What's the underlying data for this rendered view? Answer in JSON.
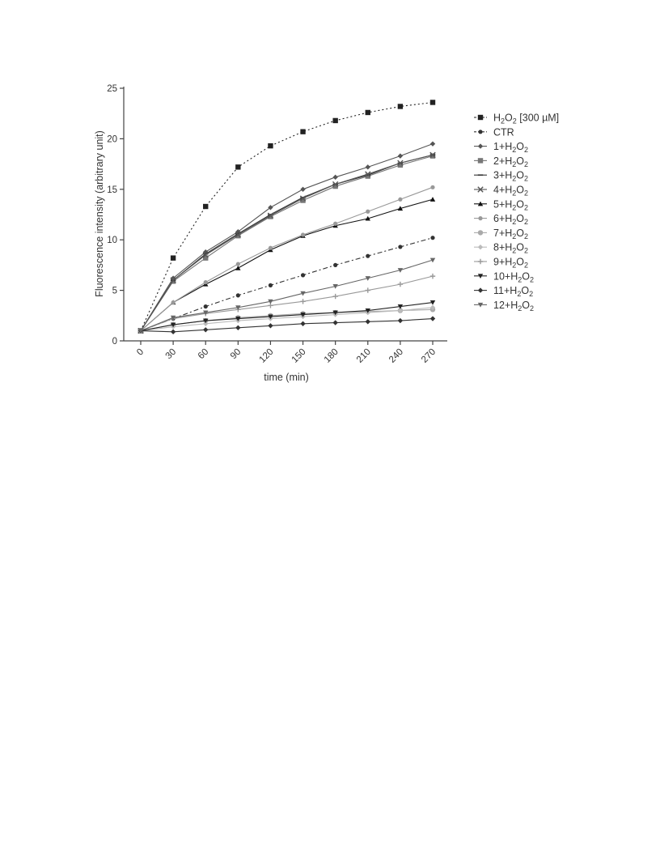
{
  "chart_data": {
    "type": "line",
    "xlabel": "time (min)",
    "ylabel": "Fluorescence intensity (arbitrary unit)",
    "x": [
      0,
      30,
      60,
      90,
      120,
      150,
      180,
      210,
      240,
      270
    ],
    "xticks": [
      "0",
      "30",
      "60",
      "90",
      "120",
      "150",
      "180",
      "210",
      "240",
      "270"
    ],
    "yticks": [
      "0",
      "5",
      "10",
      "15",
      "20",
      "25"
    ],
    "ylim": [
      0,
      25
    ],
    "grid": false,
    "legend_position": "right",
    "series": [
      {
        "name": "H2O2 [300 µM]",
        "label_parts": [
          [
            "H",
            "n"
          ],
          [
            "2",
            "s"
          ],
          [
            "O",
            "n"
          ],
          [
            "2",
            "s"
          ],
          [
            " [300 µM]",
            "n"
          ]
        ],
        "marker": "square",
        "dash": "2,3",
        "color": "#222222",
        "values": [
          1.0,
          8.2,
          13.3,
          17.2,
          19.3,
          20.7,
          21.8,
          22.6,
          23.2,
          23.6
        ]
      },
      {
        "name": "CTR",
        "label_parts": [
          [
            "CTR",
            "n"
          ]
        ],
        "marker": "circle",
        "dash": "6,3,2,3",
        "color": "#333333",
        "values": [
          1.0,
          2.2,
          3.4,
          4.5,
          5.5,
          6.5,
          7.5,
          8.4,
          9.3,
          10.2
        ]
      },
      {
        "name": "1+H2O2",
        "label_parts": [
          [
            "1+H",
            "n"
          ],
          [
            "2",
            "s"
          ],
          [
            "O",
            "n"
          ],
          [
            "2",
            "s"
          ]
        ],
        "marker": "diamond",
        "dash": "",
        "color": "#555555",
        "values": [
          1.0,
          6.2,
          8.8,
          10.8,
          13.2,
          15.0,
          16.2,
          17.2,
          18.3,
          19.5
        ]
      },
      {
        "name": "2+H2O2",
        "label_parts": [
          [
            "2+H",
            "n"
          ],
          [
            "2",
            "s"
          ],
          [
            "O",
            "n"
          ],
          [
            "2",
            "s"
          ]
        ],
        "marker": "square",
        "dash": "",
        "color": "#777777",
        "values": [
          1.0,
          5.9,
          8.2,
          10.4,
          12.3,
          13.9,
          15.3,
          16.3,
          17.4,
          18.3
        ]
      },
      {
        "name": "3+H2O2",
        "label_parts": [
          [
            "3+H",
            "n"
          ],
          [
            "2",
            "s"
          ],
          [
            "O",
            "n"
          ],
          [
            "2",
            "s"
          ]
        ],
        "marker": "dash",
        "dash": "",
        "color": "#333333",
        "values": [
          1.0,
          6.0,
          8.6,
          10.6,
          12.5,
          14.2,
          15.5,
          16.4,
          17.6,
          18.4
        ]
      },
      {
        "name": "4+H2O2",
        "label_parts": [
          [
            "4+H",
            "n"
          ],
          [
            "2",
            "s"
          ],
          [
            "O",
            "n"
          ],
          [
            "2",
            "s"
          ]
        ],
        "marker": "x",
        "dash": "",
        "color": "#555555",
        "values": [
          1.0,
          6.0,
          8.5,
          10.5,
          12.4,
          14.1,
          15.5,
          16.5,
          17.6,
          18.4
        ]
      },
      {
        "name": "5+H2O2",
        "label_parts": [
          [
            "5+H",
            "n"
          ],
          [
            "2",
            "s"
          ],
          [
            "O",
            "n"
          ],
          [
            "2",
            "s"
          ]
        ],
        "marker": "triangle",
        "dash": "",
        "color": "#111111",
        "values": [
          1.0,
          3.8,
          5.6,
          7.2,
          9.0,
          10.4,
          11.4,
          12.1,
          13.1,
          14.0
        ]
      },
      {
        "name": "6+H2O2",
        "label_parts": [
          [
            "6+H",
            "n"
          ],
          [
            "2",
            "s"
          ],
          [
            "O",
            "n"
          ],
          [
            "2",
            "s"
          ]
        ],
        "marker": "circle",
        "dash": "",
        "color": "#999999",
        "values": [
          1.0,
          3.8,
          5.8,
          7.6,
          9.2,
          10.5,
          11.6,
          12.8,
          14.0,
          15.2
        ]
      },
      {
        "name": "7+H2O2",
        "label_parts": [
          [
            "7+H",
            "n"
          ],
          [
            "2",
            "s"
          ],
          [
            "O",
            "n"
          ],
          [
            "2",
            "s"
          ]
        ],
        "marker": "circle-lg",
        "dash": "",
        "color": "#aaaaaa",
        "values": [
          1.0,
          1.6,
          2.0,
          2.3,
          2.5,
          2.7,
          2.8,
          2.9,
          3.0,
          3.1
        ]
      },
      {
        "name": "8+H2O2",
        "label_parts": [
          [
            "8+H",
            "n"
          ],
          [
            "2",
            "s"
          ],
          [
            "O",
            "n"
          ],
          [
            "2",
            "s"
          ]
        ],
        "marker": "diamond",
        "dash": "",
        "color": "#bbbbbb",
        "values": [
          1.0,
          1.4,
          1.7,
          2.0,
          2.2,
          2.4,
          2.6,
          2.8,
          3.0,
          3.3
        ]
      },
      {
        "name": "9+H2O2",
        "label_parts": [
          [
            "9+H",
            "n"
          ],
          [
            "2",
            "s"
          ],
          [
            "O",
            "n"
          ],
          [
            "2",
            "s"
          ]
        ],
        "marker": "plus",
        "dash": "",
        "color": "#999999",
        "values": [
          1.0,
          2.2,
          2.7,
          3.1,
          3.5,
          3.9,
          4.4,
          5.0,
          5.6,
          6.4
        ]
      },
      {
        "name": "10+H2O2",
        "label_parts": [
          [
            "10+H",
            "n"
          ],
          [
            "2",
            "s"
          ],
          [
            "O",
            "n"
          ],
          [
            "2",
            "s"
          ]
        ],
        "marker": "triangle-down",
        "dash": "",
        "color": "#222222",
        "values": [
          1.0,
          1.6,
          2.0,
          2.2,
          2.4,
          2.6,
          2.8,
          3.0,
          3.4,
          3.8
        ]
      },
      {
        "name": "11+H2O2",
        "label_parts": [
          [
            "11+H",
            "n"
          ],
          [
            "2",
            "s"
          ],
          [
            "O",
            "n"
          ],
          [
            "2",
            "s"
          ]
        ],
        "marker": "diamond",
        "dash": "",
        "color": "#333333",
        "values": [
          1.0,
          0.9,
          1.1,
          1.3,
          1.5,
          1.7,
          1.8,
          1.9,
          2.0,
          2.2
        ]
      },
      {
        "name": "12+H2O2",
        "label_parts": [
          [
            "12+H",
            "n"
          ],
          [
            "2",
            "s"
          ],
          [
            "O",
            "n"
          ],
          [
            "2",
            "s"
          ]
        ],
        "marker": "triangle-down",
        "dash": "",
        "color": "#666666",
        "values": [
          1.0,
          2.3,
          2.8,
          3.3,
          3.9,
          4.7,
          5.4,
          6.2,
          7.0,
          8.0
        ]
      }
    ]
  }
}
